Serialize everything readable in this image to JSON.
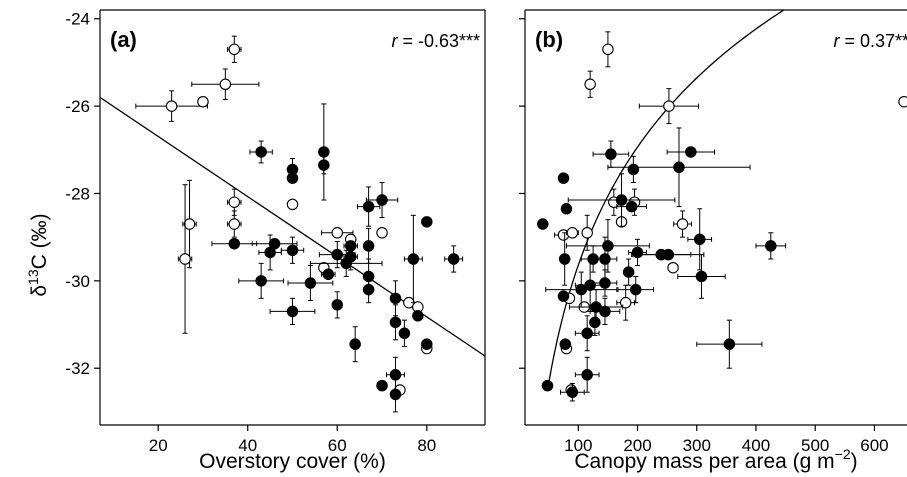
{
  "y_axis_label": {
    "base": "δ",
    "sup": "13",
    "rest": "C (‰)"
  },
  "chart_data": [
    {
      "type": "scatter",
      "panel_label": "(a)",
      "r_label": {
        "prefix": "r",
        "value": " = -0.63***"
      },
      "xlabel": "Overstory cover (%)",
      "xlim": [
        7,
        93
      ],
      "ylim": [
        -33.3,
        -23.8
      ],
      "x_ticks": [
        20,
        40,
        60,
        80
      ],
      "y_ticks": [
        -24,
        -26,
        -28,
        -30,
        -32
      ],
      "fit": {
        "kind": "linear",
        "x": [
          7,
          93
        ],
        "y": [
          -25.8,
          -31.72
        ]
      },
      "series": [
        {
          "marker": "open-circle",
          "points": [
            {
              "x": 37,
              "y": -24.7,
              "xe": 1.5,
              "ye": 0.3
            },
            {
              "x": 35,
              "y": -25.5,
              "xe": 7.5,
              "ye": 0.35
            },
            {
              "x": 23,
              "y": -26.0,
              "xe": 8.0,
              "ye": 0.35
            },
            {
              "x": 30,
              "y": -25.9,
              "xe": 0,
              "ye": 0
            },
            {
              "x": 37,
              "y": -28.2,
              "xe": 1.5,
              "ye": 0.3
            },
            {
              "x": 37,
              "y": -28.7,
              "xe": 1.5,
              "ye": 0.3
            },
            {
              "x": 27,
              "y": -28.7,
              "xe": 1.5,
              "ye": 1.0
            },
            {
              "x": 26,
              "y": -29.5,
              "xe": 1.5,
              "ye": 1.7
            },
            {
              "x": 50,
              "y": -28.25,
              "xe": 0,
              "ye": 0
            },
            {
              "x": 60,
              "y": -28.9,
              "xe": 3.5,
              "ye": 0
            },
            {
              "x": 70,
              "y": -28.9,
              "xe": 0,
              "ye": 0
            },
            {
              "x": 57,
              "y": -29.7,
              "xe": 0,
              "ye": 0
            },
            {
              "x": 63,
              "y": -29.05,
              "xe": 0,
              "ye": 0
            },
            {
              "x": 76,
              "y": -30.5,
              "xe": 0,
              "ye": 0
            },
            {
              "x": 78,
              "y": -30.6,
              "xe": 0,
              "ye": 0
            },
            {
              "x": 80,
              "y": -31.55,
              "xe": 0,
              "ye": 0
            },
            {
              "x": 74,
              "y": -32.5,
              "xe": 0,
              "ye": 0
            }
          ]
        },
        {
          "marker": "filled-circle",
          "points": [
            {
              "x": 43,
              "y": -27.05,
              "xe": 2.5,
              "ye": 0.25
            },
            {
              "x": 50,
              "y": -27.45,
              "xe": 1.0,
              "ye": 0.25
            },
            {
              "x": 50,
              "y": -27.65,
              "xe": 0,
              "ye": 0
            },
            {
              "x": 57,
              "y": -27.05,
              "xe": 1.0,
              "ye": 1.1
            },
            {
              "x": 57,
              "y": -27.35,
              "xe": 0,
              "ye": 0.2
            },
            {
              "x": 70,
              "y": -28.15,
              "xe": 3.5,
              "ye": 0.4
            },
            {
              "x": 67,
              "y": -28.3,
              "xe": 2.5,
              "ye": 0.45
            },
            {
              "x": 80,
              "y": -28.65,
              "xe": 0,
              "ye": 0
            },
            {
              "x": 37,
              "y": -29.15,
              "xe": 5.0,
              "ye": 0
            },
            {
              "x": 46,
              "y": -29.15,
              "xe": 5.0,
              "ye": 0
            },
            {
              "x": 45,
              "y": -29.35,
              "xe": 2.5,
              "ye": 0.4
            },
            {
              "x": 50,
              "y": -29.3,
              "xe": 2.5,
              "ye": 0.3
            },
            {
              "x": 60,
              "y": -29.4,
              "xe": 4.0,
              "ye": 0.3
            },
            {
              "x": 62,
              "y": -29.6,
              "xe": 8.0,
              "ye": 0.3
            },
            {
              "x": 63,
              "y": -29.45,
              "xe": 1.5,
              "ye": 0.3
            },
            {
              "x": 63,
              "y": -29.2,
              "xe": 1.5,
              "ye": 0
            },
            {
              "x": 67,
              "y": -29.2,
              "xe": 1.0,
              "ye": 0.4
            },
            {
              "x": 77,
              "y": -29.5,
              "xe": 2.0,
              "ye": 1.0
            },
            {
              "x": 86,
              "y": -29.5,
              "xe": 2.0,
              "ye": 0.3
            },
            {
              "x": 43,
              "y": -30.0,
              "xe": 5.0,
              "ye": 0.4
            },
            {
              "x": 54,
              "y": -30.05,
              "xe": 5.0,
              "ye": 0.4
            },
            {
              "x": 58,
              "y": -29.85,
              "xe": 1.5,
              "ye": 0
            },
            {
              "x": 60,
              "y": -30.55,
              "xe": 1.0,
              "ye": 0.3
            },
            {
              "x": 67,
              "y": -29.9,
              "xe": 1.0,
              "ye": 0.4
            },
            {
              "x": 67,
              "y": -30.2,
              "xe": 1.0,
              "ye": 0.3
            },
            {
              "x": 50,
              "y": -30.7,
              "xe": 5.0,
              "ye": 0.3
            },
            {
              "x": 73,
              "y": -30.4,
              "xe": 1.0,
              "ye": 0.4
            },
            {
              "x": 78,
              "y": -30.8,
              "xe": 0,
              "ye": 0
            },
            {
              "x": 75,
              "y": -31.2,
              "xe": 0,
              "ye": 0.3
            },
            {
              "x": 73,
              "y": -30.95,
              "xe": 0,
              "ye": 0.4
            },
            {
              "x": 80,
              "y": -31.45,
              "xe": 0,
              "ye": 0
            },
            {
              "x": 64,
              "y": -31.45,
              "xe": 0,
              "ye": 0.4
            },
            {
              "x": 73,
              "y": -32.15,
              "xe": 2.0,
              "ye": 0.4
            },
            {
              "x": 70,
              "y": -32.4,
              "xe": 0,
              "ye": 0
            },
            {
              "x": 73,
              "y": -32.6,
              "xe": 1.0,
              "ye": 0.4
            }
          ]
        }
      ]
    },
    {
      "type": "scatter",
      "panel_label": "(b)",
      "r_label": {
        "prefix": "r",
        "value": " = 0.37**"
      },
      "xlabel": "Canopy mass per area (g m",
      "xlabel_sup": "−2",
      "xlabel_suffix": ")",
      "xlim": [
        10,
        655
      ],
      "ylim": [
        -33.3,
        -23.8
      ],
      "x_ticks": [
        100,
        200,
        300,
        400,
        500,
        600
      ],
      "y_ticks": [
        -24,
        -26,
        -28,
        -30,
        -32
      ],
      "fit": {
        "kind": "log",
        "x_range": [
          50,
          655
        ],
        "a": -47.6,
        "b": 3.9
      },
      "series": [
        {
          "marker": "open-circle",
          "points": [
            {
              "x": 150,
              "y": -24.7,
              "xe": 0,
              "ye": 0.4
            },
            {
              "x": 120,
              "y": -25.5,
              "xe": 0,
              "ye": 0.3
            },
            {
              "x": 253,
              "y": -26.0,
              "xe": 50,
              "ye": 0.4
            },
            {
              "x": 650,
              "y": -25.9,
              "xe": 0,
              "ye": 0
            },
            {
              "x": 160,
              "y": -28.2,
              "xe": 0,
              "ye": 0.3
            },
            {
              "x": 195,
              "y": -28.2,
              "xe": 0,
              "ye": 0.3
            },
            {
              "x": 173,
              "y": -28.65,
              "xe": 0,
              "ye": 0
            },
            {
              "x": 276,
              "y": -28.7,
              "xe": 15,
              "ye": 0.3
            },
            {
              "x": 75,
              "y": -28.95,
              "xe": 15,
              "ye": 0
            },
            {
              "x": 90,
              "y": -28.9,
              "xe": 10,
              "ye": 0
            },
            {
              "x": 115,
              "y": -28.9,
              "xe": 8,
              "ye": 0.4
            },
            {
              "x": 260,
              "y": -29.7,
              "xe": 0,
              "ye": 0
            },
            {
              "x": 85,
              "y": -30.4,
              "xe": 0,
              "ye": 0
            },
            {
              "x": 110,
              "y": -30.6,
              "xe": 0,
              "ye": 0
            },
            {
              "x": 180,
              "y": -30.5,
              "xe": 15,
              "ye": 0.4
            },
            {
              "x": 80,
              "y": -31.55,
              "xe": 0,
              "ye": 0
            },
            {
              "x": 88,
              "y": -32.5,
              "xe": 0,
              "ye": 0
            }
          ]
        },
        {
          "marker": "filled-circle",
          "points": [
            {
              "x": 155,
              "y": -27.1,
              "xe": 30,
              "ye": 0.3
            },
            {
              "x": 290,
              "y": -27.05,
              "xe": 40,
              "ye": 0
            },
            {
              "x": 270,
              "y": -27.4,
              "xe": 120,
              "ye": 0.9
            },
            {
              "x": 193,
              "y": -27.45,
              "xe": 0,
              "ye": 0.3
            },
            {
              "x": 75,
              "y": -27.65,
              "xe": 0,
              "ye": 0
            },
            {
              "x": 173,
              "y": -28.15,
              "xe": 90,
              "ye": 0.6
            },
            {
              "x": 80,
              "y": -28.35,
              "xe": 0,
              "ye": 0
            },
            {
              "x": 190,
              "y": -28.3,
              "xe": 25,
              "ye": 0
            },
            {
              "x": 40,
              "y": -28.7,
              "xe": 0,
              "ye": 0
            },
            {
              "x": 150,
              "y": -29.2,
              "xe": 70,
              "ye": 0.6
            },
            {
              "x": 305,
              "y": -29.05,
              "xe": 20,
              "ye": 0.7
            },
            {
              "x": 425,
              "y": -29.2,
              "xe": 25,
              "ye": 0.3
            },
            {
              "x": 200,
              "y": -29.35,
              "xe": 15,
              "ye": 0.3
            },
            {
              "x": 240,
              "y": -29.4,
              "xe": 50,
              "ye": 0
            },
            {
              "x": 252,
              "y": -29.4,
              "xe": 60,
              "ye": 0
            },
            {
              "x": 77,
              "y": -29.5,
              "xe": 0,
              "ye": 0.6
            },
            {
              "x": 125,
              "y": -29.5,
              "xe": 20,
              "ye": 0.3
            },
            {
              "x": 145,
              "y": -29.5,
              "xe": 20,
              "ye": 0.5
            },
            {
              "x": 185,
              "y": -29.8,
              "xe": 0,
              "ye": 0.3
            },
            {
              "x": 308,
              "y": -29.9,
              "xe": 40,
              "ye": 0.5
            },
            {
              "x": 120,
              "y": -30.1,
              "xe": 25,
              "ye": 0.6
            },
            {
              "x": 145,
              "y": -30.05,
              "xe": 20,
              "ye": 0.3
            },
            {
              "x": 105,
              "y": -30.2,
              "xe": 60,
              "ye": 0.4
            },
            {
              "x": 197,
              "y": -30.2,
              "xe": 30,
              "ye": 0.3
            },
            {
              "x": 75,
              "y": -30.35,
              "xe": 0,
              "ye": 0
            },
            {
              "x": 130,
              "y": -30.6,
              "xe": 45,
              "ye": 0.4
            },
            {
              "x": 145,
              "y": -30.7,
              "xe": 25,
              "ye": 0.3
            },
            {
              "x": 128,
              "y": -30.95,
              "xe": 0,
              "ye": 0.3
            },
            {
              "x": 115,
              "y": -31.2,
              "xe": 20,
              "ye": 0.4
            },
            {
              "x": 78,
              "y": -31.45,
              "xe": 0,
              "ye": 0
            },
            {
              "x": 355,
              "y": -31.45,
              "xe": 55,
              "ye": 0.55
            },
            {
              "x": 115,
              "y": -32.15,
              "xe": 20,
              "ye": 0.4
            },
            {
              "x": 48,
              "y": -32.4,
              "xe": 0,
              "ye": 0
            },
            {
              "x": 90,
              "y": -32.55,
              "xe": 20,
              "ye": 0.2
            }
          ]
        }
      ]
    }
  ]
}
